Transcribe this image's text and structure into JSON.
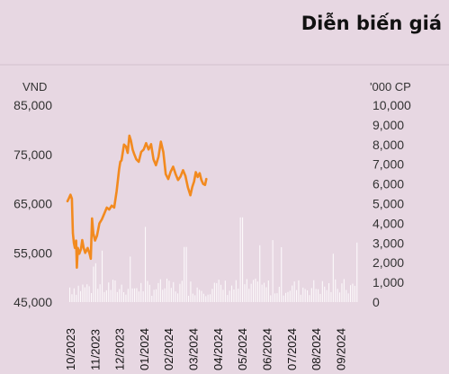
{
  "title": "Diễn biến giá",
  "chart_data": {
    "type": "line",
    "title": "Diễn biến giá",
    "price_unit": "VND",
    "volume_unit": "'000 CP",
    "price_ticks": [
      "85,000",
      "75,000",
      "65,000",
      "55,000",
      "45,000"
    ],
    "volume_ticks": [
      "10,000",
      "9,000",
      "8,000",
      "7,000",
      "6,000",
      "5,000",
      "4,000",
      "3,000",
      "2,000",
      "1,000",
      "0"
    ],
    "price_ylim": [
      45000,
      85000
    ],
    "volume_ylim": [
      0,
      10000
    ],
    "x_categories": [
      "10/2023",
      "11/2023",
      "12/2023",
      "01/2024",
      "02/2024",
      "03/2024",
      "04/2024",
      "05/2024",
      "06/2024",
      "07/2024",
      "08/2024",
      "09/2024"
    ],
    "grid": false,
    "colors": {
      "price_line": "#f28a1f",
      "volume_bars": "#ffffff"
    },
    "series": [
      {
        "values": [
          [
            0.0,
            65500
          ],
          [
            0.05,
            66000
          ],
          [
            0.12,
            66800
          ],
          [
            0.18,
            66000
          ],
          [
            0.22,
            59000
          ],
          [
            0.26,
            57000
          ],
          [
            0.3,
            56000
          ],
          [
            0.35,
            57500
          ],
          [
            0.38,
            52000
          ],
          [
            0.42,
            56000
          ],
          [
            0.48,
            54800
          ],
          [
            0.55,
            55800
          ],
          [
            0.6,
            57600
          ],
          [
            0.66,
            56000
          ],
          [
            0.72,
            55000
          ],
          [
            0.82,
            56000
          ],
          [
            0.9,
            54800
          ],
          [
            0.95,
            53800
          ],
          [
            1.0,
            62000
          ],
          [
            1.05,
            59000
          ],
          [
            1.12,
            57500
          ],
          [
            1.2,
            58500
          ],
          [
            1.3,
            61000
          ],
          [
            1.4,
            61800
          ],
          [
            1.5,
            63000
          ],
          [
            1.6,
            64200
          ],
          [
            1.7,
            63800
          ],
          [
            1.8,
            64600
          ],
          [
            1.9,
            64200
          ],
          [
            2.0,
            67500
          ],
          [
            2.1,
            72000
          ],
          [
            2.15,
            73500
          ],
          [
            2.2,
            73800
          ],
          [
            2.3,
            77000
          ],
          [
            2.38,
            76600
          ],
          [
            2.45,
            75300
          ],
          [
            2.52,
            78800
          ],
          [
            2.58,
            77800
          ],
          [
            2.65,
            76000
          ],
          [
            2.72,
            75000
          ],
          [
            2.8,
            74000
          ],
          [
            2.9,
            73500
          ],
          [
            3.0,
            75500
          ],
          [
            3.1,
            76000
          ],
          [
            3.2,
            77300
          ],
          [
            3.3,
            76000
          ],
          [
            3.4,
            77100
          ],
          [
            3.5,
            74000
          ],
          [
            3.6,
            72800
          ],
          [
            3.7,
            74500
          ],
          [
            3.8,
            77600
          ],
          [
            3.9,
            75500
          ],
          [
            4.0,
            71000
          ],
          [
            4.1,
            70000
          ],
          [
            4.2,
            71500
          ],
          [
            4.3,
            72500
          ],
          [
            4.4,
            71000
          ],
          [
            4.5,
            69800
          ],
          [
            4.6,
            70500
          ],
          [
            4.7,
            71800
          ],
          [
            4.8,
            70600
          ],
          [
            4.9,
            68300
          ],
          [
            5.0,
            66700
          ],
          [
            5.08,
            68400
          ],
          [
            5.15,
            69500
          ],
          [
            5.22,
            71400
          ],
          [
            5.3,
            70400
          ],
          [
            5.38,
            71200
          ],
          [
            5.45,
            69800
          ],
          [
            5.52,
            69000
          ],
          [
            5.6,
            68800
          ],
          [
            5.65,
            70000
          ]
        ]
      }
    ]
  }
}
